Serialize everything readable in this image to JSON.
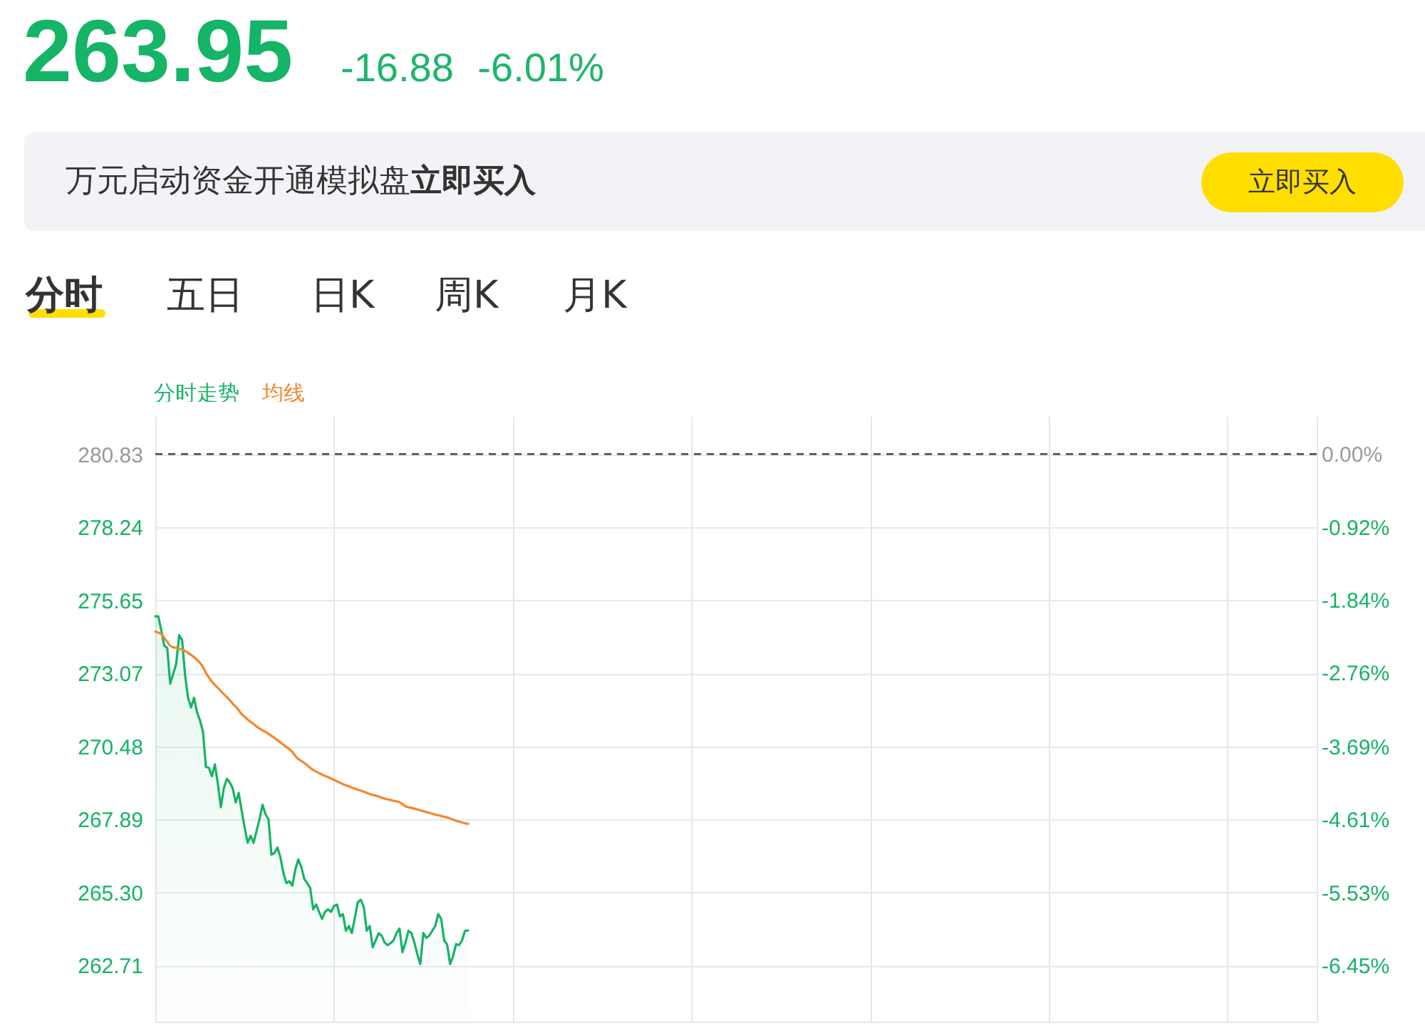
{
  "chart_data": {
    "type": "line",
    "title": "263.95",
    "subtitle": "-16.88 -6.01%",
    "annotations": [
      "万元启动资金开通模拟盘",
      "立即买入",
      "立即买入",
      "分时",
      "五日",
      "日K",
      "周K",
      "月K"
    ],
    "categories": [
      null,
      null,
      null,
      null,
      null,
      null,
      null,
      null,
      null,
      null,
      null,
      null,
      null,
      null,
      null,
      null,
      null,
      null,
      null,
      null,
      null,
      null,
      null,
      null,
      null,
      null,
      null,
      null,
      null,
      null,
      null,
      null,
      null,
      null,
      null,
      null,
      null,
      null,
      null,
      null,
      null,
      null,
      null,
      null,
      null,
      null,
      null,
      null,
      null,
      null,
      null,
      null,
      null,
      null,
      null,
      null,
      null,
      null,
      null,
      null,
      null,
      null,
      null,
      null,
      null,
      null,
      null,
      null,
      null,
      null,
      null,
      null,
      null,
      null,
      null,
      null,
      null,
      null,
      null,
      null,
      null,
      null,
      null,
      null,
      null,
      null,
      null,
      null,
      null,
      null,
      null,
      null,
      null,
      null,
      null,
      null,
      null,
      null,
      null,
      null,
      null,
      null,
      null,
      null,
      null,
      null,
      null,
      null,
      null,
      null,
      null,
      null,
      null,
      null,
      null,
      null,
      null,
      null,
      null,
      null,
      null,
      null,
      null,
      null,
      null,
      null,
      null,
      null,
      null,
      null,
      null,
      null,
      null,
      null,
      null,
      null,
      null,
      null,
      null,
      null,
      null,
      null,
      null,
      null,
      null,
      null,
      null,
      null,
      null,
      null,
      null,
      null,
      null,
      null,
      null,
      null,
      null,
      null,
      null,
      null,
      null,
      null,
      null,
      null,
      null,
      null,
      null,
      null,
      null,
      null,
      null,
      null,
      null,
      null,
      null,
      null,
      null,
      null,
      null,
      null,
      null,
      null,
      null,
      null,
      null,
      null,
      null,
      null,
      null,
      null,
      null,
      null,
      null,
      null,
      null,
      null,
      null,
      null,
      null,
      null,
      null,
      null,
      null,
      null,
      null,
      null,
      null,
      null,
      null,
      null,
      null,
      null,
      null,
      null,
      null,
      null,
      null,
      null,
      null,
      null,
      null,
      null,
      null,
      null,
      null,
      null,
      null,
      null,
      null,
      null,
      null,
      null,
      null,
      null,
      null,
      null,
      null,
      null,
      null,
      null,
      null,
      null,
      null,
      null,
      null,
      null,
      null,
      null,
      null,
      null,
      null,
      null,
      null,
      null,
      null,
      null,
      null,
      null,
      null,
      null,
      null,
      null,
      null,
      null,
      null,
      null,
      null,
      null,
      null,
      null,
      null,
      null,
      null,
      null,
      null,
      null,
      null,
      null,
      null,
      null,
      null,
      null,
      null,
      null,
      null,
      null,
      null,
      null,
      null,
      null,
      null,
      null,
      null,
      null,
      null,
      null,
      null,
      null,
      null,
      null,
      null,
      null,
      null,
      null,
      null,
      null,
      null,
      null,
      null,
      null,
      null,
      null,
      null,
      null,
      null,
      null,
      null,
      null,
      null,
      null,
      null,
      null,
      null,
      null,
      null,
      null,
      null,
      null,
      null,
      null,
      null,
      null,
      null,
      null,
      null,
      null,
      null,
      null,
      null,
      null,
      null,
      null,
      null,
      null,
      null,
      null,
      null,
      null,
      null,
      null,
      null,
      null,
      null,
      null,
      null,
      null,
      null,
      null,
      null,
      null,
      null,
      null,
      null,
      null,
      null,
      null,
      null,
      null,
      null,
      null,
      null,
      null,
      null,
      null,
      null,
      null,
      null,
      null,
      null,
      null,
      null,
      null,
      null,
      null,
      null,
      null,
      null,
      null,
      null,
      null,
      null
    ],
    "series": [
      {
        "name": "分时走势",
        "type": "area",
        "color": "#16b365",
        "values": [
          275.09,
          275.09,
          274.6,
          274.05,
          273.97,
          272.7,
          273.05,
          273.4,
          274.42,
          274.25,
          273.0,
          272.2,
          271.86,
          272.2,
          271.69,
          271.4,
          271.0,
          269.75,
          269.72,
          269.42,
          269.84,
          269.16,
          268.32,
          268.99,
          269.33,
          269.2,
          268.99,
          268.49,
          268.83,
          268.2,
          267.6,
          267.06,
          267.31,
          267.06,
          267.48,
          267.9,
          268.41,
          268.07,
          267.9,
          266.64,
          266.7,
          266.89,
          266.55,
          266.0,
          265.63,
          265.7,
          265.54,
          266.1,
          266.47,
          266.21,
          265.79,
          265.63,
          265.46,
          264.7,
          264.87,
          264.61,
          264.36,
          264.61,
          264.7,
          264.61,
          264.82,
          264.87,
          264.45,
          264.53,
          263.94,
          264.11,
          263.86,
          264.4,
          264.95,
          265.04,
          264.78,
          263.94,
          264.11,
          263.35,
          263.6,
          263.85,
          263.77,
          263.52,
          263.43,
          263.5,
          263.6,
          263.86,
          264.02,
          263.18,
          263.52,
          263.94,
          263.86,
          263.52,
          263.1,
          262.76,
          263.86,
          263.69,
          263.77,
          263.94,
          264.11,
          264.53,
          264.36,
          263.6,
          263.45,
          262.76,
          263.05,
          263.47,
          263.43,
          263.6,
          263.94,
          263.95,
          null,
          null,
          null,
          null,
          null,
          null,
          null,
          null,
          null,
          null,
          null,
          null,
          null,
          null,
          null,
          null,
          null,
          null,
          null,
          null,
          null,
          null,
          null,
          null,
          null,
          null,
          null,
          null,
          null,
          null,
          null,
          null,
          null,
          null,
          null,
          null,
          null,
          null,
          null,
          null,
          null,
          null,
          null,
          null,
          null,
          null,
          null,
          null,
          null,
          null,
          null,
          null,
          null,
          null,
          null,
          null,
          null,
          null,
          null,
          null,
          null,
          null,
          null,
          null,
          null,
          null,
          null,
          null,
          null,
          null,
          null,
          null,
          null,
          null,
          null,
          null,
          null,
          null,
          null,
          null,
          null,
          null,
          null,
          null,
          null,
          null,
          null,
          null,
          null,
          null,
          null,
          null,
          null,
          null,
          null,
          null,
          null,
          null,
          null,
          null,
          null,
          null,
          null,
          null,
          null,
          null,
          null,
          null,
          null,
          null,
          null,
          null,
          null,
          null,
          null,
          null,
          null,
          null,
          null,
          null,
          null,
          null,
          null,
          null,
          null,
          null,
          null,
          null,
          null,
          null,
          null,
          null,
          null,
          null,
          null,
          null,
          null,
          null,
          null,
          null,
          null,
          null,
          null,
          null,
          null,
          null,
          null,
          null,
          null,
          null,
          null,
          null,
          null,
          null,
          null,
          null,
          null,
          null,
          null,
          null,
          null,
          null,
          null,
          null,
          null,
          null,
          null,
          null,
          null,
          null,
          null,
          null,
          null,
          null,
          null,
          null,
          null,
          null,
          null,
          null,
          null,
          null,
          null,
          null,
          null,
          null,
          null,
          null,
          null,
          null,
          null,
          null,
          null,
          null,
          null,
          null,
          null,
          null,
          null,
          null,
          null,
          null,
          null,
          null,
          null,
          null,
          null,
          null,
          null,
          null,
          null,
          null,
          null,
          null,
          null,
          null,
          null,
          null,
          null,
          null,
          null,
          null,
          null,
          null,
          null,
          null,
          null,
          null,
          null,
          null,
          null,
          null,
          null,
          null,
          null,
          null,
          null,
          null,
          null,
          null,
          null,
          null,
          null,
          null,
          null,
          null,
          null,
          null,
          null,
          null,
          null,
          null,
          null,
          null,
          null,
          null,
          null,
          null,
          null,
          null,
          null,
          null,
          null,
          null,
          null,
          null,
          null,
          null,
          null,
          null,
          null,
          null,
          null,
          null,
          null,
          null,
          null,
          null,
          null,
          null,
          null,
          null,
          null,
          null,
          null
        ]
      },
      {
        "name": "均线",
        "type": "line",
        "color": "#f5862c",
        "values": [
          274.55,
          274.51,
          274.47,
          274.33,
          274.18,
          274.04,
          273.99,
          273.97,
          273.94,
          273.91,
          273.86,
          273.79,
          273.72,
          273.64,
          273.55,
          273.44,
          273.3,
          273.08,
          272.92,
          272.77,
          272.66,
          272.55,
          272.44,
          272.33,
          272.23,
          272.12,
          271.99,
          271.89,
          271.76,
          271.62,
          271.53,
          271.43,
          271.35,
          271.27,
          271.18,
          271.11,
          271.05,
          270.99,
          270.92,
          270.85,
          270.78,
          270.7,
          270.62,
          270.54,
          270.46,
          270.38,
          270.28,
          270.14,
          270.03,
          269.96,
          269.89,
          269.81,
          269.72,
          269.64,
          269.59,
          269.53,
          269.48,
          269.43,
          269.39,
          269.34,
          269.29,
          269.24,
          269.19,
          269.14,
          269.1,
          269.06,
          269.02,
          268.98,
          268.94,
          268.91,
          268.87,
          268.83,
          268.79,
          268.76,
          268.73,
          268.7,
          268.66,
          268.63,
          268.6,
          268.58,
          268.55,
          268.53,
          268.5,
          268.43,
          268.35,
          268.32,
          268.3,
          268.27,
          268.24,
          268.21,
          268.18,
          268.15,
          268.12,
          268.09,
          268.06,
          268.04,
          268.01,
          267.98,
          267.96,
          267.92,
          267.88,
          267.84,
          267.81,
          267.78,
          267.75,
          267.73,
          null,
          null,
          null,
          null,
          null,
          null,
          null,
          null,
          null,
          null,
          null,
          null,
          null,
          null,
          null,
          null,
          null,
          null,
          null,
          null,
          null,
          null,
          null,
          null,
          null,
          null,
          null,
          null,
          null,
          null,
          null,
          null,
          null,
          null,
          null,
          null,
          null,
          null,
          null,
          null,
          null,
          null,
          null,
          null,
          null,
          null,
          null,
          null,
          null,
          null,
          null,
          null,
          null,
          null,
          null,
          null,
          null,
          null,
          null,
          null,
          null,
          null,
          null,
          null,
          null,
          null,
          null,
          null,
          null,
          null,
          null,
          null,
          null,
          null,
          null,
          null,
          null,
          null,
          null,
          null,
          null,
          null,
          null,
          null,
          null,
          null,
          null,
          null,
          null,
          null,
          null,
          null,
          null,
          null,
          null,
          null,
          null,
          null,
          null,
          null,
          null,
          null,
          null,
          null,
          null,
          null,
          null,
          null,
          null,
          null,
          null,
          null,
          null,
          null,
          null,
          null,
          null,
          null,
          null,
          null,
          null,
          null,
          null,
          null,
          null,
          null,
          null,
          null,
          null,
          null,
          null,
          null,
          null,
          null,
          null,
          null,
          null,
          null,
          null,
          null,
          null,
          null,
          null,
          null,
          null,
          null,
          null,
          null,
          null,
          null,
          null,
          null,
          null,
          null,
          null,
          null,
          null,
          null,
          null,
          null,
          null,
          null,
          null,
          null,
          null,
          null,
          null,
          null,
          null,
          null,
          null,
          null,
          null,
          null,
          null,
          null,
          null,
          null,
          null,
          null,
          null,
          null,
          null,
          null,
          null,
          null,
          null,
          null,
          null,
          null,
          null,
          null,
          null,
          null,
          null,
          null,
          null,
          null,
          null,
          null,
          null,
          null,
          null,
          null,
          null,
          null,
          null,
          null,
          null,
          null,
          null,
          null,
          null,
          null,
          null,
          null,
          null,
          null,
          null,
          null,
          null,
          null,
          null,
          null,
          null,
          null,
          null,
          null,
          null,
          null,
          null,
          null,
          null,
          null,
          null,
          null,
          null,
          null,
          null,
          null,
          null,
          null,
          null,
          null,
          null,
          null,
          null,
          null,
          null,
          null,
          null,
          null,
          null,
          null,
          null,
          null,
          null,
          null,
          null,
          null,
          null,
          null,
          null,
          null,
          null,
          null,
          null,
          null,
          null,
          null,
          null,
          null,
          null,
          null,
          null,
          null,
          null,
          null,
          null,
          null,
          null,
          null,
          null,
          null,
          null
        ]
      }
    ],
    "ylim": [
      260.72,
      282.19
    ],
    "yticks": [
      280.83,
      278.24,
      275.65,
      273.07,
      270.48,
      267.89,
      {
        "value": 265.3,
        "label": "265.30"
      },
      262.71
    ],
    "y2lim": [
      -7.16,
      0.48
    ],
    "y2ticks": [
      {
        "value": 0,
        "label": "0.00%"
      },
      {
        "value": -0.92,
        "label": "-0.92%"
      },
      {
        "value": -1.84,
        "label": "-1.84%"
      },
      {
        "value": -2.76,
        "label": "-2.76%"
      },
      {
        "value": -3.69,
        "label": "-3.69%"
      },
      {
        "value": -4.61,
        "label": "-4.61%"
      },
      {
        "value": -5.53,
        "label": "-5.53%"
      },
      {
        "value": -6.45,
        "label": "-6.45%"
      }
    ],
    "ref_lines": [
      {
        "axis": "y2",
        "value": 0,
        "color": "#555555",
        "line_style": "dashed"
      }
    ],
    "grid": true
  }
}
